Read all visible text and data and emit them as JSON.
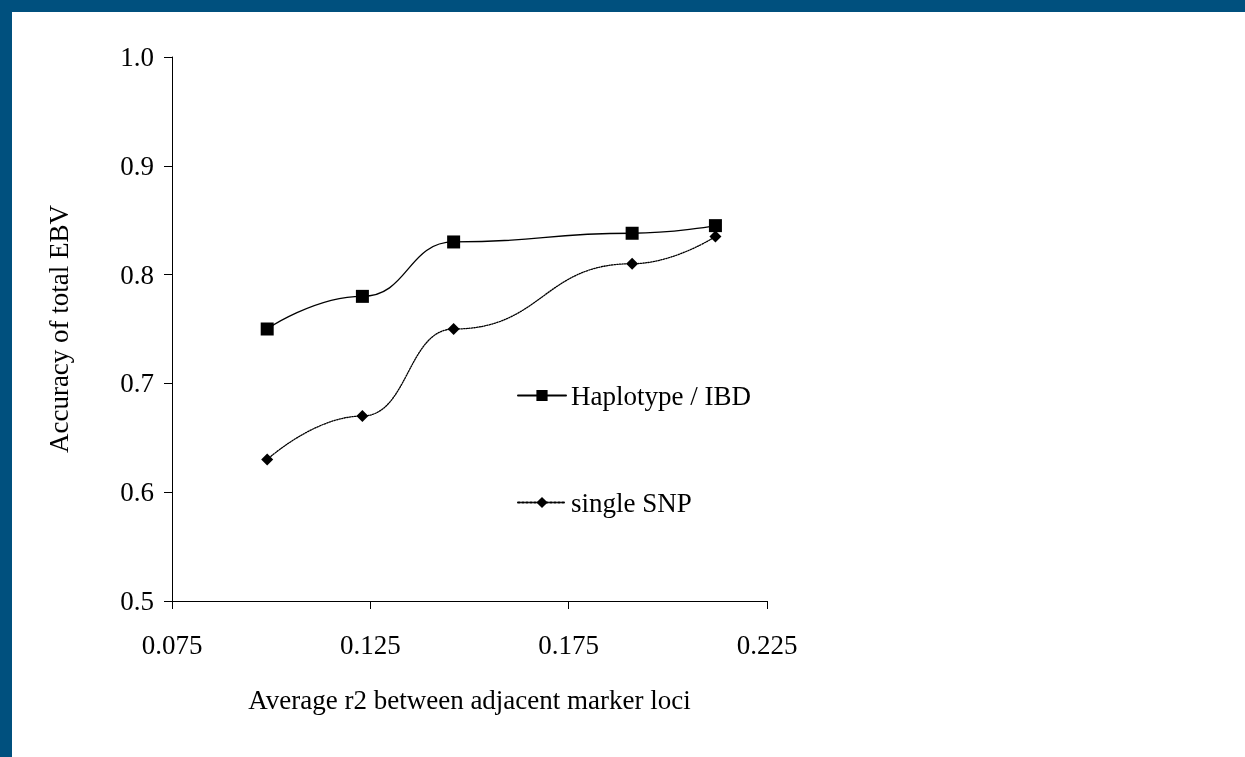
{
  "chart_data": {
    "type": "line",
    "xlabel": "Average r2 between adjacent marker loci",
    "ylabel": "Accuracy of total EBV",
    "xlim": [
      0.075,
      0.225
    ],
    "xticks": [
      0.075,
      0.125,
      0.175,
      0.225
    ],
    "ylim": [
      0.5,
      1.0
    ],
    "yticks": [
      0.5,
      0.6,
      0.7,
      0.8,
      0.9,
      {
        "value": 1.0,
        "label": "1.0"
      }
    ],
    "grid": false,
    "legend": "right",
    "series": [
      {
        "name": "Haplotype / IBD",
        "color": "#000000",
        "marker": "square",
        "line_style": "solid",
        "x": [
          0.099,
          0.123,
          0.146,
          0.191,
          0.212
        ],
        "values": [
          0.75,
          0.78,
          0.83,
          0.838,
          0.845
        ]
      },
      {
        "name": "single SNP",
        "color": "#000000",
        "marker": "diamond",
        "line_style": "dotted",
        "x": [
          0.099,
          0.123,
          0.146,
          0.191,
          0.212
        ],
        "values": [
          0.63,
          0.67,
          0.75,
          0.81,
          0.835
        ]
      }
    ]
  }
}
